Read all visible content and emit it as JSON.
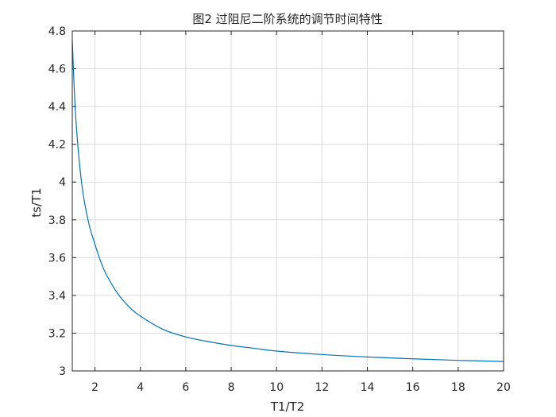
{
  "chart_data": {
    "type": "line",
    "title": "图2 过阻尼二阶系统的调节时间特性",
    "xlabel": "T1/T2",
    "ylabel": "ts/T1",
    "xlim": [
      1,
      20
    ],
    "ylim": [
      3,
      4.8
    ],
    "x_ticks": [
      2,
      4,
      6,
      8,
      10,
      12,
      14,
      16,
      18,
      20
    ],
    "x_tick_labels": [
      "2",
      "4",
      "6",
      "8",
      "10",
      "12",
      "14",
      "16",
      "18",
      "20"
    ],
    "y_ticks": [
      3,
      3.2,
      3.4,
      3.6,
      3.8,
      4,
      4.2,
      4.4,
      4.6,
      4.8
    ],
    "y_tick_labels": [
      "3",
      "3.2",
      "3.4",
      "3.6",
      "3.8",
      "4",
      "4.2",
      "4.4",
      "4.6",
      "4.8"
    ],
    "grid": true,
    "line_color": "#0072BD",
    "series": [
      {
        "x": [
          1.0,
          1.1,
          1.2,
          1.35,
          1.5,
          1.75,
          2.0,
          2.25,
          2.5,
          3.0,
          3.5,
          4.0,
          5.0,
          6.0,
          7.0,
          8.0,
          9.0,
          10.0,
          12.0,
          14.0,
          16.0,
          18.0,
          20.0
        ],
        "y": [
          4.75,
          4.46,
          4.26,
          4.06,
          3.92,
          3.77,
          3.67,
          3.58,
          3.51,
          3.41,
          3.34,
          3.29,
          3.22,
          3.18,
          3.155,
          3.135,
          3.12,
          3.105,
          3.087,
          3.074,
          3.064,
          3.056,
          3.05
        ]
      }
    ]
  }
}
